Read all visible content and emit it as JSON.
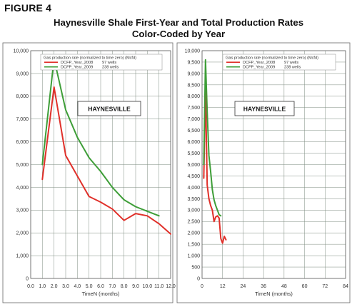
{
  "figure_label": "FIGURE 4",
  "title_line1": "Haynesville Shale First-Year and Total Production Rates",
  "title_line2": "Color-Coded by Year",
  "colors": {
    "red": "#e0302a",
    "green": "#3e9e38",
    "grid": "#7f8c80",
    "frame": "#666666"
  },
  "chart_data": [
    {
      "type": "line",
      "title": "",
      "annotation": "HAYNESVILLE",
      "legend_title": "Gas production rate (normalized to time zero) (Mcfd)",
      "xlabel": "TimeN (months)",
      "ylabel": "",
      "xlim": [
        0,
        12
      ],
      "ylim": [
        0,
        10000
      ],
      "xticks": [
        "0.0",
        "1.0",
        "2.0",
        "3.0",
        "4.0",
        "5.0",
        "6.0",
        "7.0",
        "8.0",
        "9.0",
        "10.0",
        "11.0",
        "12.0"
      ],
      "yticks": [
        "0",
        "1,000",
        "2,000",
        "3,000",
        "4,000",
        "5,000",
        "6,000",
        "7,000",
        "8,000",
        "9,000",
        "10,000"
      ],
      "legend_placement": "top-left",
      "grid": true,
      "series": [
        {
          "name": "DCFP_Year_2008",
          "count_label": "97 wells",
          "color": "#e0302a",
          "x": [
            1,
            2,
            3,
            4,
            5,
            6,
            7,
            8,
            9,
            10,
            11,
            12
          ],
          "y": [
            4350,
            8400,
            5400,
            4500,
            3600,
            3350,
            3050,
            2550,
            2850,
            2750,
            2400,
            1950
          ]
        },
        {
          "name": "DCFP_Year_2009",
          "count_label": "238 wells",
          "color": "#3e9e38",
          "x": [
            1,
            2,
            3,
            4,
            5,
            6,
            7,
            8,
            9,
            10,
            11
          ],
          "y": [
            5000,
            9650,
            7400,
            6200,
            5300,
            4700,
            4000,
            3450,
            3150,
            2950,
            2750
          ]
        }
      ]
    },
    {
      "type": "line",
      "title": "",
      "annotation": "HAYNESVILLE",
      "legend_title": "Gas production rate (normalized to time zero) (Mcfd)",
      "xlabel": "TimeN (months)",
      "ylabel": "",
      "xlim": [
        0,
        84
      ],
      "ylim": [
        0,
        10000
      ],
      "xticks": [
        "0",
        "12",
        "24",
        "36",
        "48",
        "60",
        "72",
        "84"
      ],
      "yticks": [
        "0",
        "500",
        "1,000",
        "1,500",
        "2,000",
        "2,500",
        "3,000",
        "3,500",
        "4,000",
        "4,500",
        "5,000",
        "5,500",
        "6,000",
        "6,500",
        "7,000",
        "7,500",
        "8,000",
        "8,500",
        "9,000",
        "9,500",
        "10,000"
      ],
      "legend_placement": "top-left",
      "grid": true,
      "series": [
        {
          "name": "DCFP_Year_2008",
          "count_label": "97 wells",
          "color": "#e0302a",
          "x": [
            1,
            2,
            3,
            4,
            5,
            6,
            7,
            8,
            9,
            10,
            11,
            12,
            13,
            14
          ],
          "y": [
            4400,
            8400,
            4100,
            3500,
            3200,
            3000,
            2500,
            2700,
            2750,
            2650,
            1750,
            1550,
            1850,
            1700
          ]
        },
        {
          "name": "DCFP_Year_2009",
          "count_label": "238 wells",
          "color": "#3e9e38",
          "x": [
            1,
            2,
            3,
            4,
            5,
            6,
            7,
            8,
            9,
            10,
            11
          ],
          "y": [
            5000,
            9600,
            7300,
            5400,
            4700,
            3900,
            3450,
            3200,
            3000,
            2800,
            2750
          ]
        }
      ]
    }
  ]
}
